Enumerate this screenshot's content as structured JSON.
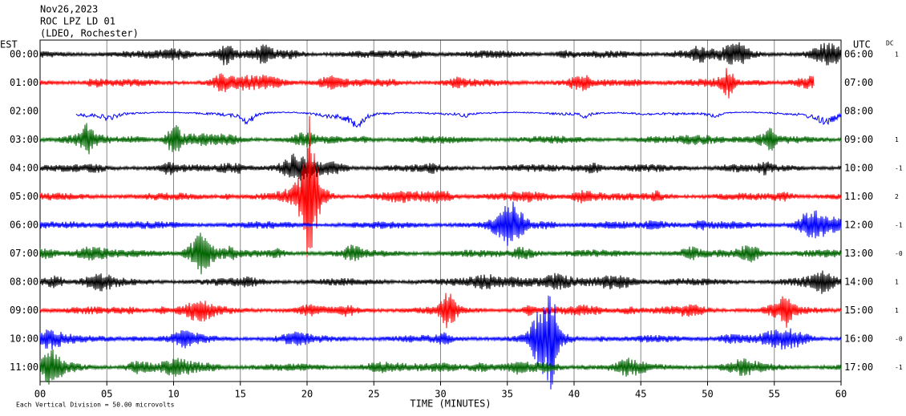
{
  "chart_data": {
    "type": "helicorder",
    "title": [
      "Nov26,2023",
      "ROC LPZ LD 01",
      "(LDEO, Rochester)"
    ],
    "xlabel": "TIME (MINUTES)",
    "xlim": [
      0,
      60
    ],
    "xticks": [
      {
        "value": 0,
        "label": "00"
      },
      {
        "value": 5,
        "label": "05"
      },
      10,
      15,
      20,
      25,
      30,
      35,
      40,
      45,
      50,
      55,
      60
    ],
    "grid": true,
    "left_axis_label": "EST",
    "right_axis_label": "UTC",
    "dc_label": "DC",
    "footnote": "Each Vertical Division =   50.00 microvolts",
    "rows": [
      {
        "est": "00:00",
        "utc": "06:00",
        "dc": "1",
        "color": "#000000",
        "start": 0,
        "end": 60
      },
      {
        "est": "01:00",
        "utc": "07:00",
        "dc": null,
        "color": "#ff0000",
        "start": 0,
        "end": 58
      },
      {
        "est": "02:00",
        "utc": "08:00",
        "dc": null,
        "color": "#0000ff",
        "start": 2.7,
        "end": 60
      },
      {
        "est": "03:00",
        "utc": "09:00",
        "dc": "1",
        "color": "#006400",
        "start": 0,
        "end": 60
      },
      {
        "est": "04:00",
        "utc": "10:00",
        "dc": "-1",
        "color": "#000000",
        "start": 0,
        "end": 60
      },
      {
        "est": "05:00",
        "utc": "11:00",
        "dc": "2",
        "color": "#ff0000",
        "start": 0,
        "end": 60
      },
      {
        "est": "06:00",
        "utc": "12:00",
        "dc": "-1",
        "color": "#0000ff",
        "start": 0,
        "end": 60
      },
      {
        "est": "07:00",
        "utc": "13:00",
        "dc": "-0",
        "color": "#006400",
        "start": 0,
        "end": 60
      },
      {
        "est": "08:00",
        "utc": "14:00",
        "dc": "1",
        "color": "#000000",
        "start": 0,
        "end": 60
      },
      {
        "est": "09:00",
        "utc": "15:00",
        "dc": "1",
        "color": "#ff0000",
        "start": 0,
        "end": 60
      },
      {
        "est": "10:00",
        "utc": "16:00",
        "dc": "-0",
        "color": "#0000ff",
        "start": 0,
        "end": 60
      },
      {
        "est": "11:00",
        "utc": "17:00",
        "dc": "-1",
        "color": "#006400",
        "start": 0,
        "end": 60
      }
    ]
  }
}
